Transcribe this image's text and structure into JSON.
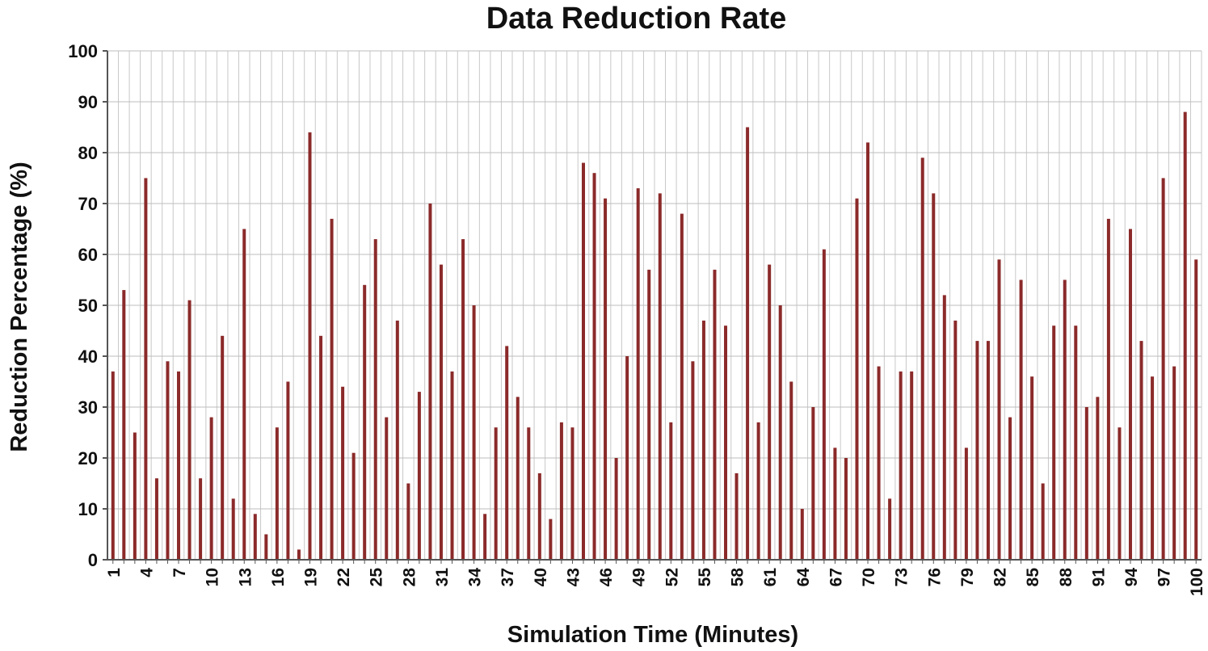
{
  "chart_data": {
    "type": "bar",
    "title": "Data Reduction Rate",
    "xlabel": "Simulation Time (Minutes)",
    "ylabel": "Reduction Percentage (%)",
    "ylim": [
      0,
      100
    ],
    "yticks": [
      0,
      10,
      20,
      30,
      40,
      50,
      60,
      70,
      80,
      90,
      100
    ],
    "xtick_labels": [
      1,
      4,
      7,
      10,
      13,
      16,
      19,
      22,
      25,
      28,
      31,
      34,
      37,
      40,
      43,
      46,
      49,
      52,
      55,
      58,
      61,
      64,
      67,
      70,
      73,
      76,
      79,
      82,
      85,
      88,
      91,
      94,
      97,
      100
    ],
    "grid": true,
    "bar_color": "#8b2a2a",
    "categories": [
      1,
      2,
      3,
      4,
      5,
      6,
      7,
      8,
      9,
      10,
      11,
      12,
      13,
      14,
      15,
      16,
      17,
      18,
      19,
      20,
      21,
      22,
      23,
      24,
      25,
      26,
      27,
      28,
      29,
      30,
      31,
      32,
      33,
      34,
      35,
      36,
      37,
      38,
      39,
      40,
      41,
      42,
      43,
      44,
      45,
      46,
      47,
      48,
      49,
      50,
      51,
      52,
      53,
      54,
      55,
      56,
      57,
      58,
      59,
      60,
      61,
      62,
      63,
      64,
      65,
      66,
      67,
      68,
      69,
      70,
      71,
      72,
      73,
      74,
      75,
      76,
      77,
      78,
      79,
      80,
      81,
      82,
      83,
      84,
      85,
      86,
      87,
      88,
      89,
      90,
      91,
      92,
      93,
      94,
      95,
      96,
      97,
      98,
      99,
      100
    ],
    "values": [
      37,
      53,
      25,
      75,
      16,
      39,
      37,
      51,
      16,
      28,
      44,
      12,
      65,
      9,
      5,
      26,
      35,
      2,
      84,
      44,
      67,
      34,
      21,
      54,
      63,
      28,
      47,
      15,
      33,
      70,
      58,
      37,
      63,
      50,
      9,
      26,
      42,
      32,
      26,
      17,
      8,
      27,
      26,
      78,
      76,
      71,
      20,
      40,
      73,
      57,
      72,
      27,
      68,
      39,
      47,
      57,
      46,
      17,
      85,
      27,
      58,
      50,
      35,
      10,
      30,
      61,
      22,
      20,
      71,
      82,
      38,
      12,
      37,
      37,
      79,
      72,
      52,
      47,
      22,
      43,
      43,
      59,
      28,
      55,
      36,
      15,
      46,
      55,
      46,
      30,
      32,
      67,
      26,
      65,
      43,
      36,
      75,
      38,
      88,
      59
    ]
  }
}
